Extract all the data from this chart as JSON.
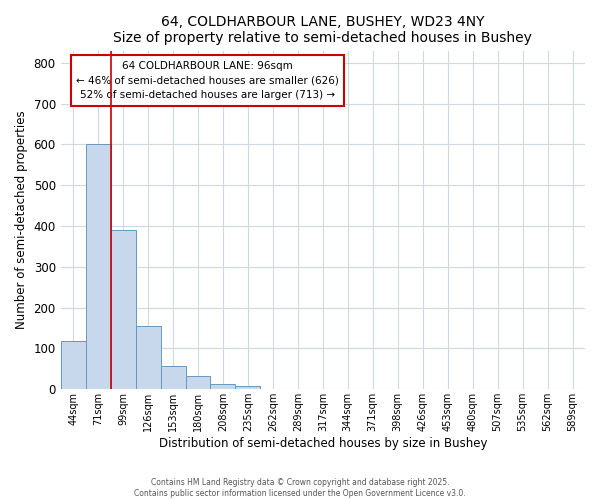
{
  "title": "64, COLDHARBOUR LANE, BUSHEY, WD23 4NY",
  "subtitle": "Size of property relative to semi-detached houses in Bushey",
  "xlabel": "Distribution of semi-detached houses by size in Bushey",
  "ylabel": "Number of semi-detached properties",
  "categories": [
    "44sqm",
    "71sqm",
    "99sqm",
    "126sqm",
    "153sqm",
    "180sqm",
    "208sqm",
    "235sqm",
    "262sqm",
    "289sqm",
    "317sqm",
    "344sqm",
    "371sqm",
    "398sqm",
    "426sqm",
    "453sqm",
    "480sqm",
    "507sqm",
    "535sqm",
    "562sqm",
    "589sqm"
  ],
  "values": [
    118,
    600,
    390,
    155,
    58,
    33,
    14,
    9,
    0,
    0,
    0,
    0,
    0,
    0,
    0,
    0,
    0,
    0,
    0,
    0,
    0
  ],
  "bar_color": "#c8d8ec",
  "bar_edge_color": "#6699bb",
  "highlight_index": 2,
  "highlight_line_color": "#cc0000",
  "ylim": [
    0,
    830
  ],
  "yticks": [
    0,
    100,
    200,
    300,
    400,
    500,
    600,
    700,
    800
  ],
  "annotation_title": "64 COLDHARBOUR LANE: 96sqm",
  "annotation_line1": "← 46% of semi-detached houses are smaller (626)",
  "annotation_line2": "52% of semi-detached houses are larger (713) →",
  "annotation_box_color": "#ffffff",
  "annotation_border_color": "#cc0000",
  "background_color": "#ffffff",
  "plot_bg_color": "#ffffff",
  "grid_color": "#d0d8e0",
  "footer_line1": "Contains HM Land Registry data © Crown copyright and database right 2025.",
  "footer_line2": "Contains public sector information licensed under the Open Government Licence v3.0."
}
